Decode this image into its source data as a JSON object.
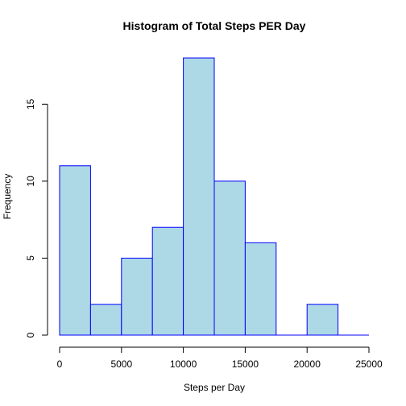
{
  "chart_data": {
    "type": "bar",
    "title": "Histogram of Total Steps PER Day",
    "xlabel": "Steps per Day",
    "ylabel": "Frequency",
    "bins": [
      {
        "start": 0,
        "end": 2500,
        "value": 11
      },
      {
        "start": 2500,
        "end": 5000,
        "value": 2
      },
      {
        "start": 5000,
        "end": 7500,
        "value": 5
      },
      {
        "start": 7500,
        "end": 10000,
        "value": 7
      },
      {
        "start": 10000,
        "end": 12500,
        "value": 18
      },
      {
        "start": 12500,
        "end": 15000,
        "value": 10
      },
      {
        "start": 15000,
        "end": 17500,
        "value": 6
      },
      {
        "start": 17500,
        "end": 20000,
        "value": 0
      },
      {
        "start": 20000,
        "end": 22500,
        "value": 2
      },
      {
        "start": 22500,
        "end": 25000,
        "value": 0
      }
    ],
    "xlim": [
      0,
      25000
    ],
    "ylim": [
      0,
      18
    ],
    "x_ticks": [
      0,
      5000,
      10000,
      15000,
      20000,
      25000
    ],
    "x_tick_labels": [
      "0",
      "5000",
      "10000",
      "15000",
      "20000",
      "25000"
    ],
    "y_ticks": [
      0,
      5,
      10,
      15
    ],
    "y_tick_labels": [
      "0",
      "5",
      "10",
      "15"
    ],
    "bar_fill": "#add8e6",
    "bar_stroke": "#0000ff",
    "grid": false,
    "legend": "none"
  }
}
